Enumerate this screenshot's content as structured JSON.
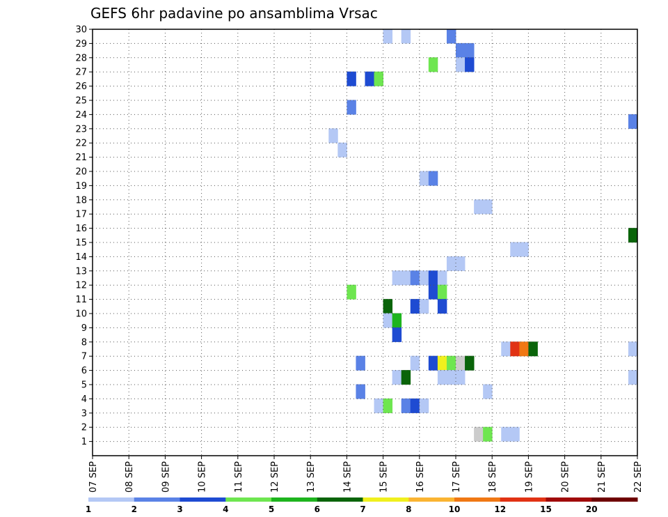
{
  "chart_data": {
    "type": "heatmap",
    "title": "GEFS 6hr padavine po ansamblima Vrsac",
    "x_labels": [
      "07 SEP",
      "08 SEP",
      "09 SEP",
      "10 SEP",
      "11 SEP",
      "12 SEP",
      "13 SEP",
      "14 SEP",
      "15 SEP",
      "16 SEP",
      "17 SEP",
      "18 SEP",
      "19 SEP",
      "20 SEP",
      "21 SEP",
      "22 SEP"
    ],
    "y_labels": [
      "1",
      "2",
      "3",
      "4",
      "5",
      "6",
      "7",
      "8",
      "9",
      "10",
      "11",
      "12",
      "13",
      "14",
      "15",
      "16",
      "17",
      "18",
      "19",
      "20",
      "21",
      "22",
      "23",
      "24",
      "25",
      "26",
      "27",
      "28",
      "29",
      "30"
    ],
    "xlim": [
      0,
      60
    ],
    "ylim": [
      0,
      30
    ],
    "grid": true,
    "legend": {
      "position": "bottom",
      "labels": [
        "1",
        "2",
        "3",
        "4",
        "5",
        "6",
        "7",
        "8",
        "10",
        "12",
        "15",
        "20"
      ],
      "colors": [
        "#b4c8f5",
        "#5a82e6",
        "#1e4bd2",
        "#6ee650",
        "#1eb41e",
        "#0a640a",
        "#f0f01e",
        "#fab432",
        "#f07814",
        "#e13214",
        "#a00a0a",
        "#6e0000"
      ]
    },
    "cells": [
      {
        "x": 32,
        "y": 29,
        "level": 1
      },
      {
        "x": 34,
        "y": 29,
        "level": 1
      },
      {
        "x": 39,
        "y": 29,
        "level": 2
      },
      {
        "x": 40,
        "y": 28,
        "level": 2
      },
      {
        "x": 41,
        "y": 28,
        "level": 2
      },
      {
        "x": 37,
        "y": 27,
        "level": 4
      },
      {
        "x": 40,
        "y": 27,
        "level": 1
      },
      {
        "x": 41,
        "y": 27,
        "level": 3
      },
      {
        "x": 28,
        "y": 26,
        "level": 3
      },
      {
        "x": 30,
        "y": 26,
        "level": 3
      },
      {
        "x": 31,
        "y": 26,
        "level": 4
      },
      {
        "x": 28,
        "y": 24,
        "level": 2
      },
      {
        "x": 59,
        "y": 23,
        "level": 2
      },
      {
        "x": 26,
        "y": 22,
        "level": 1
      },
      {
        "x": 27,
        "y": 21,
        "level": 1
      },
      {
        "x": 36,
        "y": 19,
        "level": 1
      },
      {
        "x": 37,
        "y": 19,
        "level": 2
      },
      {
        "x": 42,
        "y": 17,
        "level": 1
      },
      {
        "x": 43,
        "y": 17,
        "level": 1
      },
      {
        "x": 59,
        "y": 15,
        "level": 6
      },
      {
        "x": 46,
        "y": 14,
        "level": 1
      },
      {
        "x": 47,
        "y": 14,
        "level": 1
      },
      {
        "x": 40,
        "y": 13,
        "level": 1
      },
      {
        "x": 39,
        "y": 13,
        "level": 1
      },
      {
        "x": 33,
        "y": 12,
        "level": 1
      },
      {
        "x": 34,
        "y": 12,
        "level": 1
      },
      {
        "x": 35,
        "y": 12,
        "level": 2
      },
      {
        "x": 36,
        "y": 12,
        "level": 1
      },
      {
        "x": 37,
        "y": 12,
        "level": 3
      },
      {
        "x": 38,
        "y": 12,
        "level": 1
      },
      {
        "x": 28,
        "y": 11,
        "level": 4
      },
      {
        "x": 37,
        "y": 11,
        "level": 3
      },
      {
        "x": 38,
        "y": 11,
        "level": 4
      },
      {
        "x": 32,
        "y": 10,
        "level": 6
      },
      {
        "x": 35,
        "y": 10,
        "level": 3
      },
      {
        "x": 36,
        "y": 10,
        "level": 1
      },
      {
        "x": 38,
        "y": 10,
        "level": 3
      },
      {
        "x": 32,
        "y": 9,
        "level": 1
      },
      {
        "x": 33,
        "y": 9,
        "level": 5
      },
      {
        "x": 33,
        "y": 8,
        "level": 3
      },
      {
        "x": 45,
        "y": 7,
        "level": 1
      },
      {
        "x": 46,
        "y": 7,
        "level": 12
      },
      {
        "x": 47,
        "y": 7,
        "level": 10
      },
      {
        "x": 48,
        "y": 7,
        "level": 6
      },
      {
        "x": 59,
        "y": 7,
        "level": 1
      },
      {
        "x": 29,
        "y": 6,
        "level": 2
      },
      {
        "x": 35,
        "y": 6,
        "level": 1
      },
      {
        "x": 37,
        "y": 6,
        "level": 3
      },
      {
        "x": 38,
        "y": 6,
        "level": 7
      },
      {
        "x": 39,
        "y": 6,
        "level": 4
      },
      {
        "x": 40,
        "y": 6,
        "level": 11
      },
      {
        "x": 41,
        "y": 6,
        "level": 6
      },
      {
        "x": 33,
        "y": 5,
        "level": 1
      },
      {
        "x": 34,
        "y": 5,
        "level": 6
      },
      {
        "x": 38,
        "y": 5,
        "level": 1
      },
      {
        "x": 39,
        "y": 5,
        "level": 1
      },
      {
        "x": 40,
        "y": 5,
        "level": 1
      },
      {
        "x": 59,
        "y": 5,
        "level": 1
      },
      {
        "x": 29,
        "y": 4,
        "level": 2
      },
      {
        "x": 43,
        "y": 4,
        "level": 1
      },
      {
        "x": 31,
        "y": 3,
        "level": 1
      },
      {
        "x": 32,
        "y": 3,
        "level": 4
      },
      {
        "x": 34,
        "y": 3,
        "level": 2
      },
      {
        "x": 35,
        "y": 3,
        "level": 3
      },
      {
        "x": 36,
        "y": 3,
        "level": 1
      },
      {
        "x": 42,
        "y": 1,
        "level": 11
      },
      {
        "x": 43,
        "y": 1,
        "level": 4
      },
      {
        "x": 45,
        "y": 1,
        "level": 1
      },
      {
        "x": 46,
        "y": 1,
        "level": 1
      }
    ]
  }
}
